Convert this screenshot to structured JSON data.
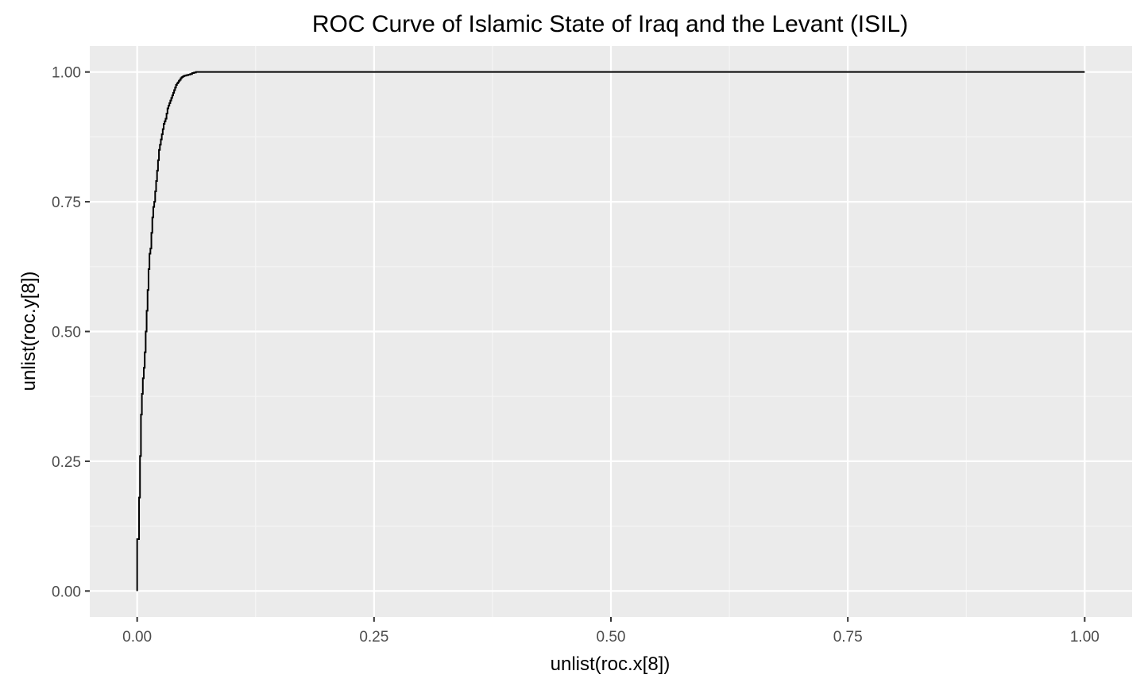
{
  "chart_data": {
    "type": "line",
    "title": "ROC Curve of  Islamic State of Iraq and the Levant (ISIL)",
    "xlabel": "unlist(roc.x[8])",
    "ylabel": "unlist(roc.y[8])",
    "xlim": [
      -0.05,
      1.05
    ],
    "ylim": [
      -0.05,
      1.05
    ],
    "x_ticks": [
      0,
      0.25,
      0.5,
      0.75,
      1
    ],
    "y_ticks": [
      0,
      0.25,
      0.5,
      0.75,
      1
    ],
    "x_tick_labels": [
      "0.00",
      "0.25",
      "0.50",
      "0.75",
      "1.00"
    ],
    "y_tick_labels": [
      "0.00",
      "0.25",
      "0.50",
      "0.75",
      "1.00"
    ],
    "grid": true,
    "colors": {
      "panel_background": "#ebebeb",
      "grid_major": "#ffffff",
      "grid_minor": "#f5f5f5",
      "line": "#000000",
      "tick_label": "#4d4d4d",
      "tick_mark": "#333333"
    },
    "series": [
      {
        "x": [
          0.0,
          0.0,
          0.002,
          0.002,
          0.003,
          0.003,
          0.004,
          0.004,
          0.005,
          0.005,
          0.006,
          0.006,
          0.007,
          0.007,
          0.008,
          0.008,
          0.009,
          0.009,
          0.01,
          0.01,
          0.011,
          0.011,
          0.012,
          0.012,
          0.013,
          0.013,
          0.014,
          0.014,
          0.015,
          0.015,
          0.016,
          0.016,
          0.017,
          0.017,
          0.018,
          0.018,
          0.019,
          0.019,
          0.02,
          0.02,
          0.021,
          0.021,
          0.022,
          0.022,
          0.023,
          0.023,
          0.024,
          0.024,
          0.025,
          0.025,
          0.026,
          0.026,
          0.027,
          0.027,
          0.028,
          0.028,
          0.029,
          0.029,
          0.03,
          0.03,
          0.031,
          0.031,
          0.032,
          0.032,
          0.033,
          0.033,
          0.034,
          0.034,
          0.035,
          0.035,
          0.036,
          0.036,
          0.037,
          0.037,
          0.038,
          0.038,
          0.039,
          0.039,
          0.04,
          0.04,
          0.041,
          0.041,
          0.042,
          0.042,
          0.043,
          0.043,
          0.044,
          0.044,
          0.045,
          0.045,
          0.046,
          0.046,
          0.047,
          0.047,
          0.048,
          0.048,
          0.049,
          0.049,
          0.05,
          0.05,
          0.052,
          0.052,
          0.054,
          0.054,
          0.056,
          0.056,
          0.058,
          0.058,
          0.06,
          0.06,
          0.062,
          0.062,
          1.0
        ],
        "y": [
          0.0,
          0.1,
          0.1,
          0.18,
          0.18,
          0.26,
          0.26,
          0.34,
          0.34,
          0.38,
          0.38,
          0.41,
          0.41,
          0.43,
          0.43,
          0.46,
          0.46,
          0.5,
          0.5,
          0.54,
          0.54,
          0.58,
          0.58,
          0.62,
          0.62,
          0.65,
          0.65,
          0.66,
          0.66,
          0.69,
          0.69,
          0.72,
          0.72,
          0.74,
          0.74,
          0.75,
          0.75,
          0.77,
          0.77,
          0.79,
          0.79,
          0.81,
          0.81,
          0.83,
          0.83,
          0.85,
          0.85,
          0.86,
          0.86,
          0.87,
          0.87,
          0.88,
          0.88,
          0.89,
          0.89,
          0.9,
          0.9,
          0.905,
          0.905,
          0.91,
          0.91,
          0.92,
          0.92,
          0.93,
          0.93,
          0.935,
          0.935,
          0.94,
          0.94,
          0.945,
          0.945,
          0.95,
          0.95,
          0.955,
          0.955,
          0.96,
          0.96,
          0.965,
          0.965,
          0.97,
          0.97,
          0.975,
          0.975,
          0.978,
          0.978,
          0.98,
          0.98,
          0.983,
          0.983,
          0.985,
          0.985,
          0.988,
          0.988,
          0.99,
          0.99,
          0.991,
          0.991,
          0.992,
          0.992,
          0.993,
          0.993,
          0.994,
          0.994,
          0.995,
          0.995,
          0.996,
          0.996,
          0.998,
          0.998,
          0.999,
          0.999,
          1.0,
          1.0
        ]
      }
    ]
  }
}
